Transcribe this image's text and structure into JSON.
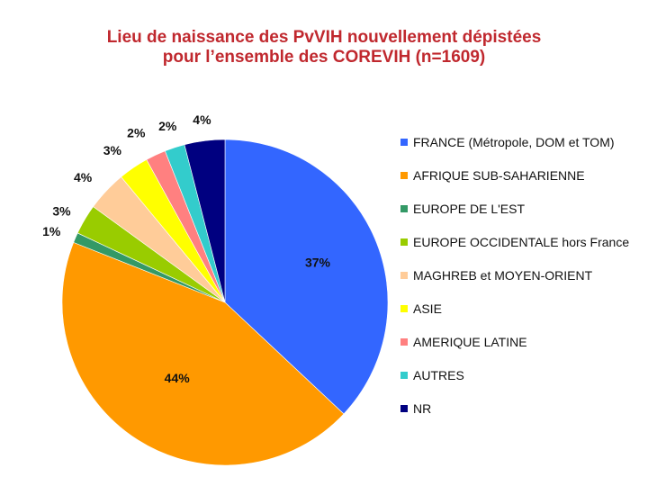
{
  "title_line1": "Lieu de naissance des PvVIH nouvellement dépistées",
  "title_line2": "pour l’ensemble des COREVIH (n=1609)",
  "chart_data": {
    "type": "pie",
    "title": "Lieu de naissance des PvVIH nouvellement dépistées pour l’ensemble des COREVIH (n=1609)",
    "categories": [
      "FRANCE (Métropole, DOM et TOM)",
      "AFRIQUE SUB-SAHARIENNE",
      "EUROPE DE L'EST",
      "EUROPE OCCIDENTALE hors France",
      "MAGHREB et MOYEN-ORIENT",
      "ASIE",
      "AMERIQUE LATINE",
      "AUTRES",
      "NR"
    ],
    "values": [
      37,
      44,
      1,
      3,
      4,
      3,
      2,
      2,
      4
    ],
    "labels": [
      "37%",
      "44%",
      "1%",
      "3%",
      "4%",
      "3%",
      "2%",
      "2%",
      "4%"
    ],
    "colors": [
      "#3366ff",
      "#ff9900",
      "#339966",
      "#99cc00",
      "#ffcc99",
      "#ffff00",
      "#ff8080",
      "#33cccc",
      "#000080"
    ],
    "legend_position": "right"
  }
}
